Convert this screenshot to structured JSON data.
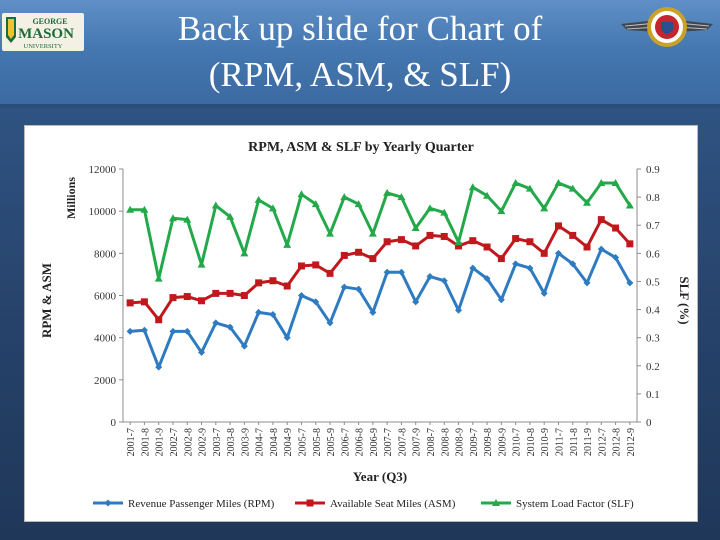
{
  "slide": {
    "title_line1": "Back up slide for Chart of",
    "title_line2": "(RPM, ASM, & SLF)",
    "logo_left": {
      "line1": "GEORGE",
      "line2": "MASON",
      "line3": "UNIVERSITY"
    },
    "accent_color": "#4577b0"
  },
  "chart_data": {
    "type": "line",
    "title": "RPM, ASM & SLF by Yearly Quarter",
    "xlabel": "Year (Q3)",
    "ylabel_left": "RPM & ASM",
    "ylabel_left_unit": "Millions",
    "ylabel_right": "SLF (%)",
    "ylim_left": [
      0,
      12000
    ],
    "ylim_right": [
      0,
      0.9
    ],
    "yticks_left": [
      "0",
      "2000",
      "4000",
      "6000",
      "8000",
      "10000",
      "12000"
    ],
    "yticks_right": [
      "0",
      "0.1",
      "0.2",
      "0.3",
      "0.4",
      "0.5",
      "0.6",
      "0.7",
      "0.8",
      "0.9"
    ],
    "grid": false,
    "legend_position": "bottom",
    "categories": [
      "2001-7",
      "2001-8",
      "2001-9",
      "2002-7",
      "2002-8",
      "2002-9",
      "2003-7",
      "2003-8",
      "2003-9",
      "2004-7",
      "2004-8",
      "2004-9",
      "2005-7",
      "2005-8",
      "2005-9",
      "2006-7",
      "2006-8",
      "2006-9",
      "2007-7",
      "2007-8",
      "2007-9",
      "2008-7",
      "2008-8",
      "2008-9",
      "2009-7",
      "2009-8",
      "2009-9",
      "2010-7",
      "2010-8",
      "2010-9",
      "2011-7",
      "2011-8",
      "2011-9",
      "2012-7",
      "2012-8",
      "2012-9"
    ],
    "series": [
      {
        "name": "Revenue Passenger Miles (RPM)",
        "axis": "left",
        "color": "#2e7bc2",
        "marker": "diamond",
        "values": [
          4300,
          4350,
          2600,
          4300,
          4300,
          3300,
          4700,
          4500,
          3600,
          5200,
          5100,
          4000,
          6000,
          5700,
          4700,
          6400,
          6300,
          5200,
          7100,
          7100,
          5700,
          6900,
          6700,
          5300,
          7300,
          6800,
          5800,
          7500,
          7300,
          6100,
          8000,
          7500,
          6600,
          8200,
          7800,
          6600
        ]
      },
      {
        "name": "Available Seat Miles (ASM)",
        "axis": "left",
        "color": "#c0181d",
        "marker": "square",
        "values": [
          5650,
          5700,
          4850,
          5900,
          5950,
          5750,
          6100,
          6100,
          6000,
          6600,
          6700,
          6450,
          7400,
          7450,
          7050,
          7900,
          8050,
          7750,
          8550,
          8650,
          8350,
          8850,
          8800,
          8350,
          8600,
          8300,
          7750,
          8700,
          8550,
          8000,
          9300,
          8850,
          8300,
          9600,
          9200,
          8450
        ]
      },
      {
        "name": "System Load Factor (SLF)",
        "axis": "right",
        "color": "#23a94a",
        "marker": "triangle",
        "values": [
          0.755,
          0.755,
          0.51,
          0.725,
          0.72,
          0.56,
          0.77,
          0.73,
          0.6,
          0.79,
          0.76,
          0.63,
          0.81,
          0.775,
          0.67,
          0.8,
          0.775,
          0.67,
          0.815,
          0.8,
          0.69,
          0.76,
          0.745,
          0.64,
          0.835,
          0.805,
          0.75,
          0.85,
          0.83,
          0.76,
          0.85,
          0.83,
          0.78,
          0.85,
          0.85,
          0.77
        ]
      }
    ]
  }
}
